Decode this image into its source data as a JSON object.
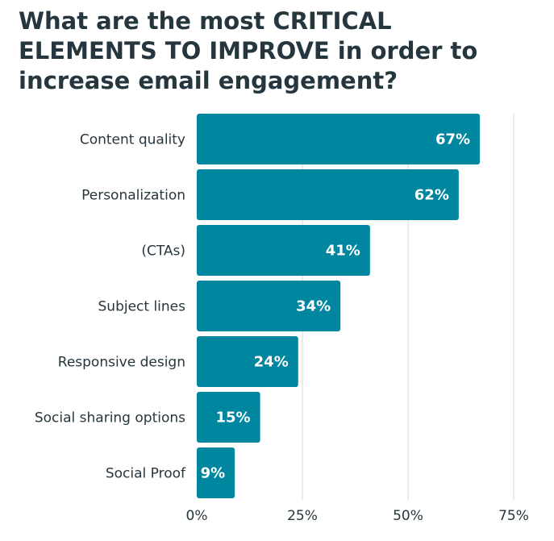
{
  "chart_data": {
    "type": "bar",
    "orientation": "horizontal",
    "title": "What are the most CRITICAL ELEMENTS TO IMPROVE in order to increase email engagement?",
    "categories": [
      "Content quality",
      "Personalization",
      "(CTAs)",
      "Subject lines",
      "Responsive design",
      "Social sharing options",
      "Social Proof"
    ],
    "values": [
      67,
      62,
      41,
      34,
      24,
      15,
      9
    ],
    "value_labels": [
      "67%",
      "62%",
      "41%",
      "34%",
      "24%",
      "15%",
      "9%"
    ],
    "xlim": [
      0,
      75
    ],
    "x_ticks": [
      0,
      25,
      50,
      75
    ],
    "x_tick_labels": [
      "0%",
      "25%",
      "50%",
      "75%"
    ],
    "grid": true,
    "bar_color": "#00869f",
    "grid_color": "#d9d9d9",
    "text_color": "#26363e"
  }
}
